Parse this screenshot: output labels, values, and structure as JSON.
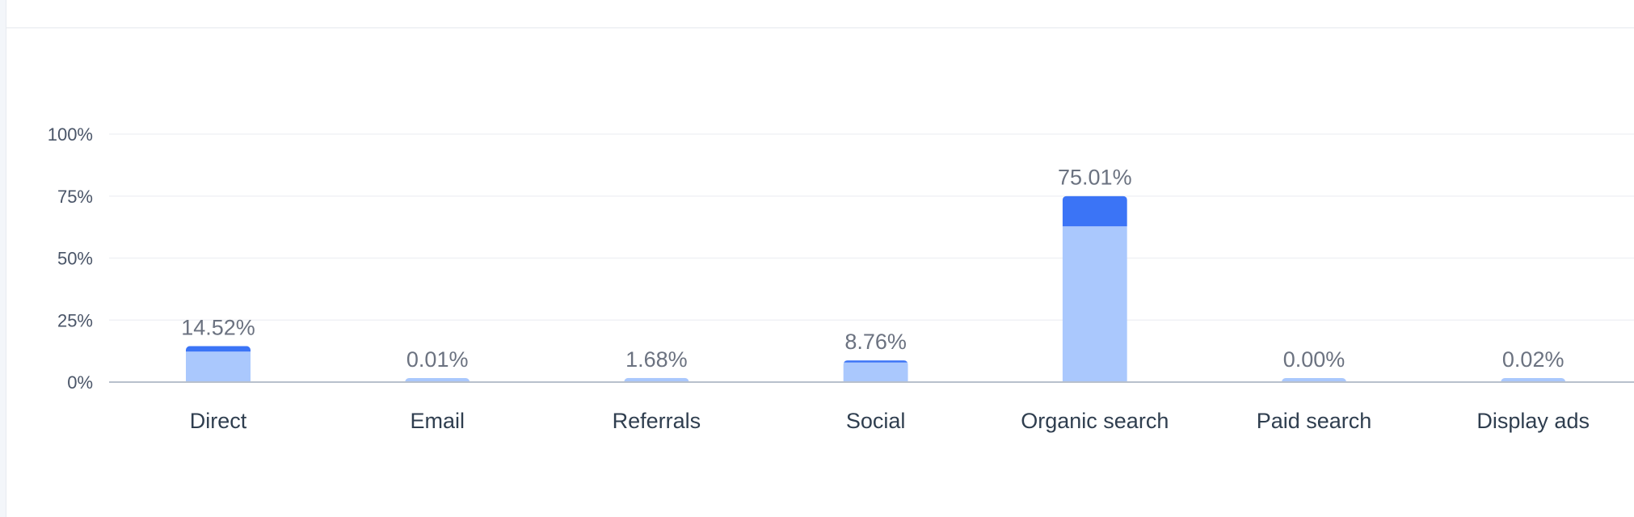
{
  "chart_data": {
    "type": "bar",
    "stacked": true,
    "categories": [
      "Direct",
      "Email",
      "Referrals",
      "Social",
      "Organic search",
      "Paid search",
      "Display ads"
    ],
    "totals": [
      14.52,
      0.01,
      1.68,
      8.76,
      75.01,
      0.0,
      0.02
    ],
    "data_labels": [
      "14.52%",
      "0.01%",
      "1.68%",
      "8.76%",
      "75.01%",
      "0.00%",
      "0.02%"
    ],
    "series": [
      {
        "values": [
          12.3,
          0.01,
          1.68,
          7.9,
          62.8,
          0.0,
          0.02
        ],
        "color": "#aac8fd"
      },
      {
        "values": [
          2.22,
          0.0,
          0.0,
          0.86,
          12.21,
          0.0,
          0.0
        ],
        "color": "#3b74f6"
      }
    ],
    "yticks": [
      "0%",
      "25%",
      "50%",
      "75%",
      "100%"
    ],
    "ylim": [
      0,
      100
    ],
    "grid": true,
    "legend": "none",
    "colors": {
      "gridline": "#f0f2f5",
      "axis": "#b8c0cc",
      "background": "#ffffff"
    }
  }
}
